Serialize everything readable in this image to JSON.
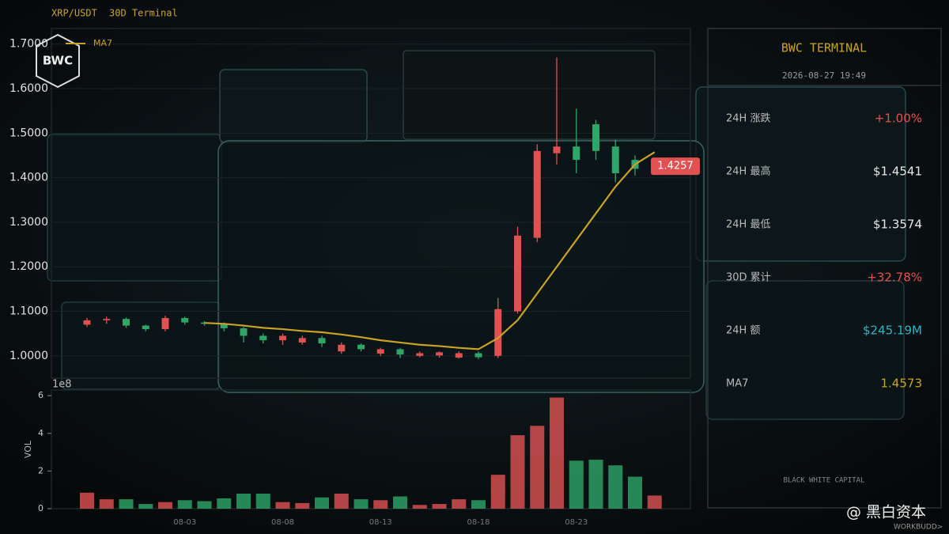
{
  "header": {
    "pair": "XRP/USDT",
    "subtitle": "30D Terminal",
    "logo": "BWC"
  },
  "chart_data": [
    {
      "type": "candlestick",
      "categories": [
        null,
        null,
        null,
        null,
        null,
        "08-03",
        null,
        null,
        null,
        null,
        "08-08",
        null,
        null,
        null,
        null,
        "08-13",
        null,
        null,
        null,
        null,
        "08-18",
        null,
        null,
        null,
        null,
        "08-23",
        null,
        null,
        null,
        null
      ],
      "open": [
        1.07,
        1.08,
        1.083,
        1.068,
        1.06,
        1.085,
        1.075,
        1.072,
        1.062,
        1.045,
        1.035,
        1.03,
        1.04,
        1.01,
        1.025,
        1.005,
        1.015,
        1.0,
        1.001,
        0.996,
        1.006,
        1.0,
        1.1,
        1.265,
        1.455,
        1.47,
        1.52,
        1.47,
        1.44,
        1.42
      ],
      "high": [
        1.085,
        1.088,
        1.086,
        1.07,
        1.09,
        1.088,
        1.078,
        1.075,
        1.065,
        1.05,
        1.05,
        1.045,
        1.045,
        1.03,
        1.028,
        1.018,
        1.018,
        1.01,
        1.01,
        1.01,
        1.01,
        1.13,
        1.29,
        1.475,
        1.67,
        1.555,
        1.53,
        1.485,
        1.45,
        1.445
      ],
      "low": [
        1.065,
        1.072,
        1.063,
        1.055,
        1.055,
        1.07,
        1.068,
        1.055,
        1.03,
        1.028,
        1.025,
        1.025,
        1.02,
        1.005,
        1.01,
        1.0,
        0.995,
        0.997,
        0.996,
        0.994,
        0.993,
        0.995,
        1.095,
        1.255,
        1.43,
        1.41,
        1.44,
        1.39,
        1.405,
        1.41
      ],
      "close": [
        1.08,
        1.083,
        1.068,
        1.06,
        1.085,
        1.075,
        1.072,
        1.062,
        1.045,
        1.035,
        1.045,
        1.04,
        1.028,
        1.025,
        1.015,
        1.015,
        1.003,
        1.006,
        1.008,
        1.006,
        0.997,
        1.105,
        1.27,
        1.46,
        1.47,
        1.44,
        1.46,
        1.41,
        1.42,
        1.4257
      ],
      "up_color": "#e05252",
      "down_color": "#2ea66a",
      "series": [
        {
          "name": "MA7",
          "color": "#c9a227",
          "values": [
            null,
            null,
            null,
            null,
            null,
            null,
            1.074,
            1.072,
            1.068,
            1.063,
            1.06,
            1.056,
            1.053,
            1.048,
            1.042,
            1.035,
            1.03,
            1.025,
            1.022,
            1.018,
            1.015,
            1.04,
            1.08,
            1.14,
            1.2,
            1.26,
            1.32,
            1.38,
            1.43,
            1.4573
          ]
        }
      ],
      "ylim": [
        0.95,
        1.735
      ],
      "yticks": [
        {
          "value": 1.0,
          "label": "1.0000"
        },
        {
          "value": 1.1,
          "label": "1.1000"
        },
        {
          "value": 1.2,
          "label": "1.2000"
        },
        {
          "value": 1.3,
          "label": "1.3000"
        },
        {
          "value": 1.4,
          "label": "1.4000"
        },
        {
          "value": 1.5,
          "label": "1.5000"
        },
        {
          "value": 1.6,
          "label": "1.6000"
        },
        {
          "value": 1.7,
          "label": "1.7000"
        }
      ],
      "grid": true,
      "legend": "top-left"
    },
    {
      "type": "bar",
      "y_label": "VOL",
      "offset_label": "1e8",
      "values": [
        0.85,
        0.5,
        0.5,
        0.25,
        0.35,
        0.45,
        0.4,
        0.55,
        0.8,
        0.8,
        0.35,
        0.3,
        0.6,
        0.8,
        0.5,
        0.45,
        0.65,
        0.2,
        0.25,
        0.5,
        0.45,
        1.8,
        3.9,
        4.4,
        5.9,
        2.55,
        2.6,
        2.3,
        1.7,
        0.7
      ],
      "ylim": [
        0,
        6.3
      ],
      "yticks": [
        0,
        2,
        4,
        6
      ]
    }
  ],
  "panel": {
    "title": "BWC TERMINAL",
    "timestamp": "2026-08-27 19:49",
    "rows": [
      {
        "label": "24H 涨跌",
        "value": "+1.00%",
        "color": "#e05252"
      },
      {
        "label": "24H 最高",
        "value": "$1.4541",
        "color": "#e8e8e8"
      },
      {
        "label": "24H 最低",
        "value": "$1.3574",
        "color": "#e8e8e8"
      },
      {
        "label": "30D 累计",
        "value": "+32.78%",
        "color": "#e05252"
      },
      {
        "label": "24H 额",
        "value": "$245.19M",
        "color": "#29b6c8"
      },
      {
        "label": "MA7",
        "value": "1.4573",
        "color": "#c9a227"
      }
    ],
    "footer": "BLACK WHITE CAPITAL"
  },
  "watermark": {
    "handle": "@ 黑白资本",
    "brand": "WORKBUDD>"
  }
}
